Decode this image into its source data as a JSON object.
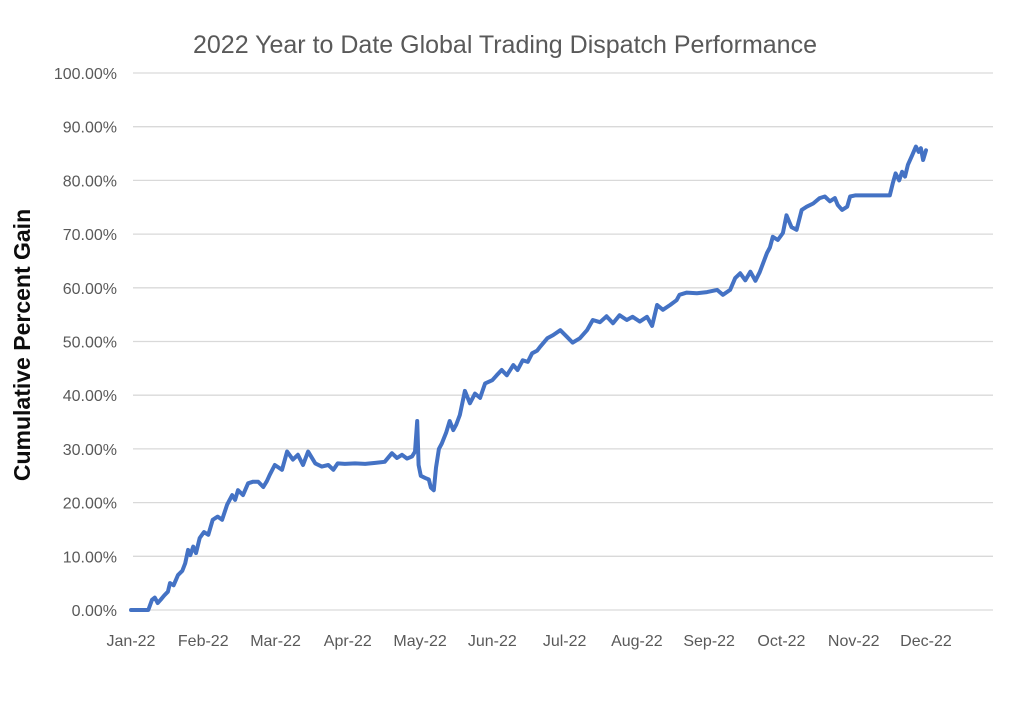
{
  "chart_data": {
    "type": "line",
    "title": "2022 Year to Date Global Trading Dispatch Performance",
    "xlabel": "",
    "ylabel": "Cumulative Percent Gain",
    "x_tick_labels": [
      "Jan-22",
      "Feb-22",
      "Mar-22",
      "Apr-22",
      "May-22",
      "Jun-22",
      "Jul-22",
      "Aug-22",
      "Sep-22",
      "Oct-22",
      "Nov-22",
      "Dec-22"
    ],
    "y_tick_labels": [
      "0.00%",
      "10.00%",
      "20.00%",
      "30.00%",
      "40.00%",
      "50.00%",
      "60.00%",
      "70.00%",
      "80.00%",
      "90.00%",
      "100.00%"
    ],
    "ylim": [
      0,
      100
    ],
    "y_tick_step_pct": 10,
    "grid": "horizontal",
    "legend_position": "none",
    "series": [
      {
        "name": "Cumulative Percent Gain",
        "x_unit": "months elapsed since Jan-22 (fraction of month)",
        "y_unit": "percent",
        "points": [
          [
            0.0,
            0.0
          ],
          [
            0.24,
            0.0
          ],
          [
            0.29,
            1.9
          ],
          [
            0.33,
            2.3
          ],
          [
            0.37,
            1.3
          ],
          [
            0.41,
            1.9
          ],
          [
            0.46,
            2.7
          ],
          [
            0.51,
            3.4
          ],
          [
            0.54,
            5.0
          ],
          [
            0.59,
            4.6
          ],
          [
            0.65,
            6.5
          ],
          [
            0.71,
            7.3
          ],
          [
            0.75,
            8.7
          ],
          [
            0.79,
            11.2
          ],
          [
            0.82,
            10.2
          ],
          [
            0.86,
            11.8
          ],
          [
            0.9,
            10.6
          ],
          [
            0.95,
            13.4
          ],
          [
            1.01,
            14.5
          ],
          [
            1.07,
            14.0
          ],
          [
            1.13,
            16.8
          ],
          [
            1.2,
            17.4
          ],
          [
            1.26,
            16.8
          ],
          [
            1.33,
            19.6
          ],
          [
            1.4,
            21.4
          ],
          [
            1.44,
            20.5
          ],
          [
            1.48,
            22.3
          ],
          [
            1.55,
            21.4
          ],
          [
            1.62,
            23.6
          ],
          [
            1.69,
            23.9
          ],
          [
            1.76,
            23.9
          ],
          [
            1.83,
            22.9
          ],
          [
            1.88,
            24.0
          ],
          [
            1.92,
            25.2
          ],
          [
            1.99,
            27.0
          ],
          [
            2.09,
            26.1
          ],
          [
            2.16,
            29.5
          ],
          [
            2.24,
            28.0
          ],
          [
            2.31,
            28.9
          ],
          [
            2.38,
            27.0
          ],
          [
            2.45,
            29.5
          ],
          [
            2.55,
            27.3
          ],
          [
            2.64,
            26.7
          ],
          [
            2.73,
            27.0
          ],
          [
            2.8,
            26.1
          ],
          [
            2.86,
            27.3
          ],
          [
            2.96,
            27.2
          ],
          [
            3.1,
            27.3
          ],
          [
            3.24,
            27.2
          ],
          [
            3.38,
            27.4
          ],
          [
            3.51,
            27.6
          ],
          [
            3.61,
            29.2
          ],
          [
            3.68,
            28.3
          ],
          [
            3.75,
            28.9
          ],
          [
            3.82,
            28.2
          ],
          [
            3.89,
            28.6
          ],
          [
            3.93,
            29.5
          ],
          [
            3.96,
            35.2
          ],
          [
            3.98,
            27.0
          ],
          [
            4.01,
            25.0
          ],
          [
            4.07,
            24.6
          ],
          [
            4.12,
            24.3
          ],
          [
            4.15,
            22.8
          ],
          [
            4.19,
            22.3
          ],
          [
            4.22,
            26.5
          ],
          [
            4.26,
            30.0
          ],
          [
            4.3,
            31.0
          ],
          [
            4.36,
            33.0
          ],
          [
            4.41,
            35.2
          ],
          [
            4.46,
            33.5
          ],
          [
            4.5,
            34.5
          ],
          [
            4.55,
            36.3
          ],
          [
            4.62,
            40.8
          ],
          [
            4.69,
            38.5
          ],
          [
            4.76,
            40.3
          ],
          [
            4.83,
            39.5
          ],
          [
            4.9,
            42.2
          ],
          [
            5.0,
            42.8
          ],
          [
            5.06,
            43.7
          ],
          [
            5.13,
            44.7
          ],
          [
            5.2,
            43.7
          ],
          [
            5.29,
            45.6
          ],
          [
            5.35,
            44.7
          ],
          [
            5.42,
            46.5
          ],
          [
            5.49,
            46.2
          ],
          [
            5.55,
            47.8
          ],
          [
            5.62,
            48.3
          ],
          [
            5.66,
            49.0
          ],
          [
            5.76,
            50.6
          ],
          [
            5.84,
            51.2
          ],
          [
            5.94,
            52.1
          ],
          [
            6.03,
            50.9
          ],
          [
            6.11,
            49.8
          ],
          [
            6.21,
            50.6
          ],
          [
            6.31,
            52.1
          ],
          [
            6.39,
            54.0
          ],
          [
            6.49,
            53.6
          ],
          [
            6.58,
            54.7
          ],
          [
            6.67,
            53.4
          ],
          [
            6.76,
            54.9
          ],
          [
            6.86,
            54.0
          ],
          [
            6.94,
            54.6
          ],
          [
            7.04,
            53.7
          ],
          [
            7.14,
            54.6
          ],
          [
            7.21,
            52.9
          ],
          [
            7.28,
            56.8
          ],
          [
            7.36,
            55.9
          ],
          [
            7.46,
            56.8
          ],
          [
            7.55,
            57.7
          ],
          [
            7.59,
            58.7
          ],
          [
            7.69,
            59.1
          ],
          [
            7.83,
            59.0
          ],
          [
            7.97,
            59.2
          ],
          [
            8.11,
            59.6
          ],
          [
            8.19,
            58.7
          ],
          [
            8.29,
            59.6
          ],
          [
            8.36,
            61.8
          ],
          [
            8.43,
            62.7
          ],
          [
            8.5,
            61.4
          ],
          [
            8.57,
            63.0
          ],
          [
            8.64,
            61.3
          ],
          [
            8.7,
            62.9
          ],
          [
            8.8,
            66.5
          ],
          [
            8.84,
            67.5
          ],
          [
            8.88,
            69.5
          ],
          [
            8.95,
            68.9
          ],
          [
            9.02,
            70.2
          ],
          [
            9.07,
            73.5
          ],
          [
            9.14,
            71.3
          ],
          [
            9.21,
            70.8
          ],
          [
            9.28,
            74.5
          ],
          [
            9.35,
            75.1
          ],
          [
            9.44,
            75.7
          ],
          [
            9.53,
            76.7
          ],
          [
            9.6,
            77.0
          ],
          [
            9.67,
            76.1
          ],
          [
            9.74,
            76.7
          ],
          [
            9.78,
            75.4
          ],
          [
            9.84,
            74.5
          ],
          [
            9.91,
            75.1
          ],
          [
            9.95,
            77.0
          ],
          [
            10.02,
            77.2
          ],
          [
            10.5,
            77.2
          ],
          [
            10.54,
            79.4
          ],
          [
            10.58,
            81.3
          ],
          [
            10.63,
            80.0
          ],
          [
            10.67,
            81.6
          ],
          [
            10.71,
            80.7
          ],
          [
            10.75,
            82.9
          ],
          [
            10.81,
            84.7
          ],
          [
            10.86,
            86.3
          ],
          [
            10.9,
            85.3
          ],
          [
            10.93,
            86.0
          ],
          [
            10.96,
            83.8
          ],
          [
            11.0,
            85.6
          ]
        ]
      }
    ]
  },
  "colors": {
    "line": "#4472C4",
    "title_text": "#595959",
    "axis_tick_text": "#595959",
    "y_axis_title_text": "#0d0d0d",
    "gridline": "#D9D9D9",
    "background": "#FFFFFF"
  }
}
